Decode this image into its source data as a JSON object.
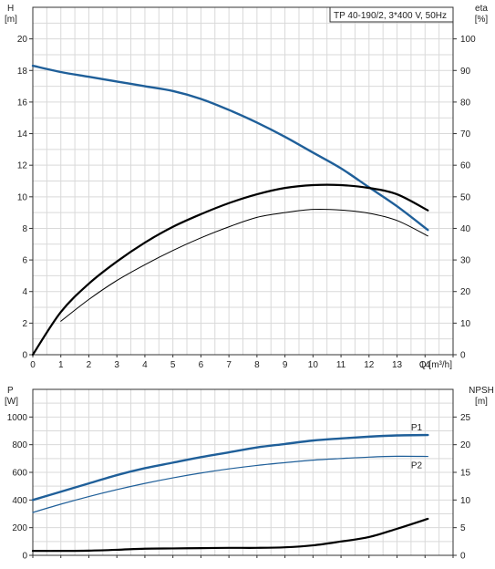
{
  "chart_data": [
    {
      "type": "line",
      "title": "TP 40-190/2, 3*400 V, 50Hz",
      "x_axis": {
        "label": "Q [m³/h]",
        "lim": [
          0,
          15
        ],
        "ticks": [
          0,
          1,
          2,
          3,
          4,
          5,
          6,
          7,
          8,
          9,
          10,
          11,
          12,
          13,
          14
        ]
      },
      "y_left": {
        "label_top": "H",
        "label_unit": "[m]",
        "lim": [
          0,
          22
        ],
        "ticks": [
          0,
          2,
          4,
          6,
          8,
          10,
          12,
          14,
          16,
          18,
          20
        ]
      },
      "y_right": {
        "label_top": "eta",
        "label_unit": "[%]",
        "lim": [
          0,
          110
        ],
        "ticks": [
          0,
          10,
          20,
          30,
          40,
          50,
          60,
          70,
          80,
          90,
          100
        ]
      },
      "grid": true,
      "series": [
        {
          "axis": "left",
          "color": "#1f5f99",
          "points": [
            [
              0,
              18.3
            ],
            [
              1,
              17.9
            ],
            [
              2,
              17.6
            ],
            [
              3,
              17.3
            ],
            [
              4,
              17.0
            ],
            [
              5,
              16.7
            ],
            [
              6,
              16.2
            ],
            [
              7,
              15.5
            ],
            [
              8,
              14.7
            ],
            [
              9,
              13.8
            ],
            [
              10,
              12.8
            ],
            [
              11,
              11.8
            ],
            [
              12,
              10.6
            ],
            [
              13,
              9.4
            ],
            [
              14.1,
              7.9
            ]
          ]
        },
        {
          "axis": "right",
          "points": [
            [
              0,
              0
            ],
            [
              1,
              13.5
            ],
            [
              2,
              22.5
            ],
            [
              3,
              29.5
            ],
            [
              4,
              35.5
            ],
            [
              5,
              40.5
            ],
            [
              6,
              44.5
            ],
            [
              7,
              48
            ],
            [
              8,
              50.8
            ],
            [
              9,
              52.8
            ],
            [
              10,
              53.7
            ],
            [
              11,
              53.7
            ],
            [
              12,
              52.8
            ],
            [
              13,
              50.8
            ],
            [
              14.1,
              45.7
            ]
          ]
        },
        {
          "axis": "right",
          "points": [
            [
              1,
              10.6
            ],
            [
              2,
              17.5
            ],
            [
              3,
              23.5
            ],
            [
              4,
              28.5
            ],
            [
              5,
              33
            ],
            [
              6,
              37
            ],
            [
              7,
              40.5
            ],
            [
              8,
              43.5
            ],
            [
              9,
              45
            ],
            [
              10,
              46
            ],
            [
              11,
              45.8
            ],
            [
              12,
              44.8
            ],
            [
              13,
              42.5
            ],
            [
              14.1,
              37.6
            ]
          ]
        }
      ]
    },
    {
      "type": "line",
      "x_axis": {
        "lim": [
          0,
          15
        ]
      },
      "y_left": {
        "label_top": "P",
        "label_unit": "[W]",
        "lim": [
          0,
          1200
        ],
        "ticks": [
          0,
          200,
          400,
          600,
          800,
          1000
        ]
      },
      "y_right": {
        "label_top": "NPSH",
        "label_unit": "[m]",
        "lim": [
          0,
          30
        ],
        "ticks": [
          0,
          5,
          10,
          15,
          20,
          25
        ]
      },
      "grid": true,
      "series": [
        {
          "name": "P1",
          "axis": "left",
          "color": "#1f5f99",
          "points": [
            [
              0,
              400
            ],
            [
              1,
              460
            ],
            [
              2,
              520
            ],
            [
              3,
              580
            ],
            [
              4,
              630
            ],
            [
              5,
              670
            ],
            [
              6,
              710
            ],
            [
              7,
              745
            ],
            [
              8,
              780
            ],
            [
              9,
              805
            ],
            [
              10,
              830
            ],
            [
              11,
              845
            ],
            [
              12,
              858
            ],
            [
              13,
              867
            ],
            [
              14.1,
              870
            ]
          ]
        },
        {
          "name": "P2",
          "axis": "left",
          "color": "#1f5f99",
          "points": [
            [
              0,
              310
            ],
            [
              1,
              370
            ],
            [
              2,
              425
            ],
            [
              3,
              475
            ],
            [
              4,
              520
            ],
            [
              5,
              560
            ],
            [
              6,
              595
            ],
            [
              7,
              625
            ],
            [
              8,
              650
            ],
            [
              9,
              670
            ],
            [
              10,
              688
            ],
            [
              11,
              700
            ],
            [
              12,
              710
            ],
            [
              13,
              716
            ],
            [
              14.1,
              715
            ]
          ]
        },
        {
          "axis": "right",
          "points": [
            [
              0,
              0.8
            ],
            [
              1,
              0.8
            ],
            [
              2,
              0.85
            ],
            [
              3,
              1.0
            ],
            [
              4,
              1.2
            ],
            [
              5,
              1.25
            ],
            [
              6,
              1.3
            ],
            [
              7,
              1.35
            ],
            [
              8,
              1.35
            ],
            [
              9,
              1.45
            ],
            [
              10,
              1.8
            ],
            [
              11,
              2.5
            ],
            [
              12,
              3.3
            ],
            [
              13,
              4.8
            ],
            [
              14.1,
              6.6
            ]
          ]
        }
      ]
    }
  ]
}
